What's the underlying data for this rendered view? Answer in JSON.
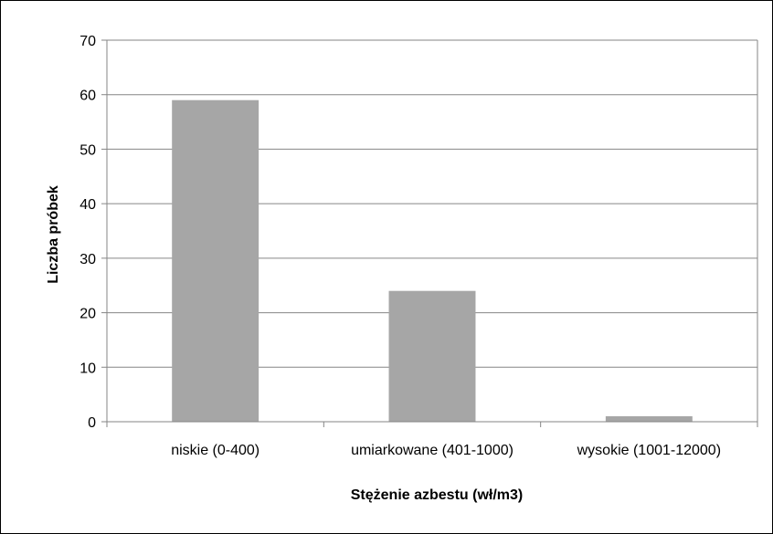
{
  "chart_data": {
    "type": "bar",
    "categories": [
      "niskie (0-400)",
      "umiarkowane (401-1000)",
      "wysokie (1001-12000)"
    ],
    "values": [
      59,
      24,
      1
    ],
    "title": "",
    "xlabel": "Stężenie azbestu (wł/m3)",
    "ylabel": "Liczba próbek",
    "ylim": [
      0,
      70
    ],
    "yticks": [
      "0",
      "10",
      "20",
      "30",
      "40",
      "50",
      "60",
      "70"
    ],
    "grid": true,
    "legend": "none",
    "colors": {
      "bar": "#a6a6a6",
      "grid": "#868686",
      "axis": "#868686",
      "plot_border": "#868686"
    }
  }
}
